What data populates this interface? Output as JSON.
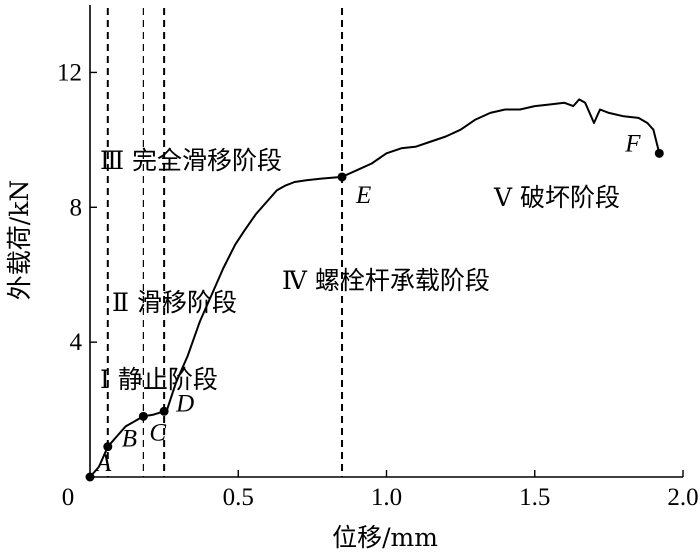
{
  "chart_data": {
    "type": "line",
    "xlabel": "位移/mm",
    "ylabel": "外载荷/kN",
    "xlim": [
      0,
      2.0
    ],
    "ylim": [
      0,
      14
    ],
    "xticks": [
      0,
      0.5,
      1.0,
      1.5,
      2.0
    ],
    "xtick_labels": [
      "0",
      "0.5",
      "1.0",
      "1.5",
      "2.0"
    ],
    "yticks": [
      0,
      4,
      8,
      12
    ],
    "ytick_labels": [
      "",
      "4",
      "8",
      "12"
    ],
    "origin_label": "0",
    "grid": false,
    "series": [
      {
        "x": [
          0.0,
          0.03,
          0.06,
          0.09,
          0.12,
          0.15,
          0.18,
          0.215,
          0.25,
          0.26,
          0.29,
          0.33,
          0.37,
          0.41,
          0.45,
          0.49,
          0.52,
          0.56,
          0.6,
          0.63,
          0.66,
          0.69,
          0.73,
          0.78,
          0.85,
          0.9,
          0.95,
          1.0,
          1.05,
          1.1,
          1.15,
          1.2,
          1.25,
          1.3,
          1.35,
          1.4,
          1.45,
          1.5,
          1.55,
          1.6,
          1.63,
          1.65,
          1.67,
          1.7,
          1.72,
          1.75,
          1.8,
          1.85,
          1.88,
          1.9,
          1.92
        ],
        "y": [
          0.0,
          0.3,
          0.9,
          1.2,
          1.5,
          1.65,
          1.8,
          1.85,
          1.95,
          2.0,
          2.8,
          3.6,
          4.6,
          5.4,
          6.2,
          6.9,
          7.3,
          7.8,
          8.2,
          8.5,
          8.65,
          8.75,
          8.8,
          8.85,
          8.9,
          9.1,
          9.3,
          9.6,
          9.75,
          9.8,
          9.95,
          10.1,
          10.3,
          10.6,
          10.8,
          10.9,
          10.9,
          11.0,
          11.05,
          11.1,
          11.0,
          11.2,
          11.1,
          10.5,
          10.9,
          10.8,
          10.7,
          10.65,
          10.5,
          10.3,
          9.6
        ]
      }
    ],
    "points": [
      {
        "label": "A",
        "x": 0.0,
        "y": 0.0
      },
      {
        "label": "B",
        "x": 0.06,
        "y": 0.9
      },
      {
        "label": "C",
        "x": 0.18,
        "y": 1.8
      },
      {
        "label": "D",
        "x": 0.25,
        "y": 1.95
      },
      {
        "label": "E",
        "x": 0.85,
        "y": 8.9
      },
      {
        "label": "F",
        "x": 1.92,
        "y": 9.6
      }
    ],
    "stage_boundaries": [
      0.06,
      0.18,
      0.25,
      0.85
    ],
    "stages": [
      "Ⅰ 静止阶段",
      "Ⅱ 滑移阶段",
      "Ⅲ 完全滑移阶段",
      "Ⅳ 螺栓杆承载阶段",
      "Ⅴ 破坏阶段"
    ]
  }
}
